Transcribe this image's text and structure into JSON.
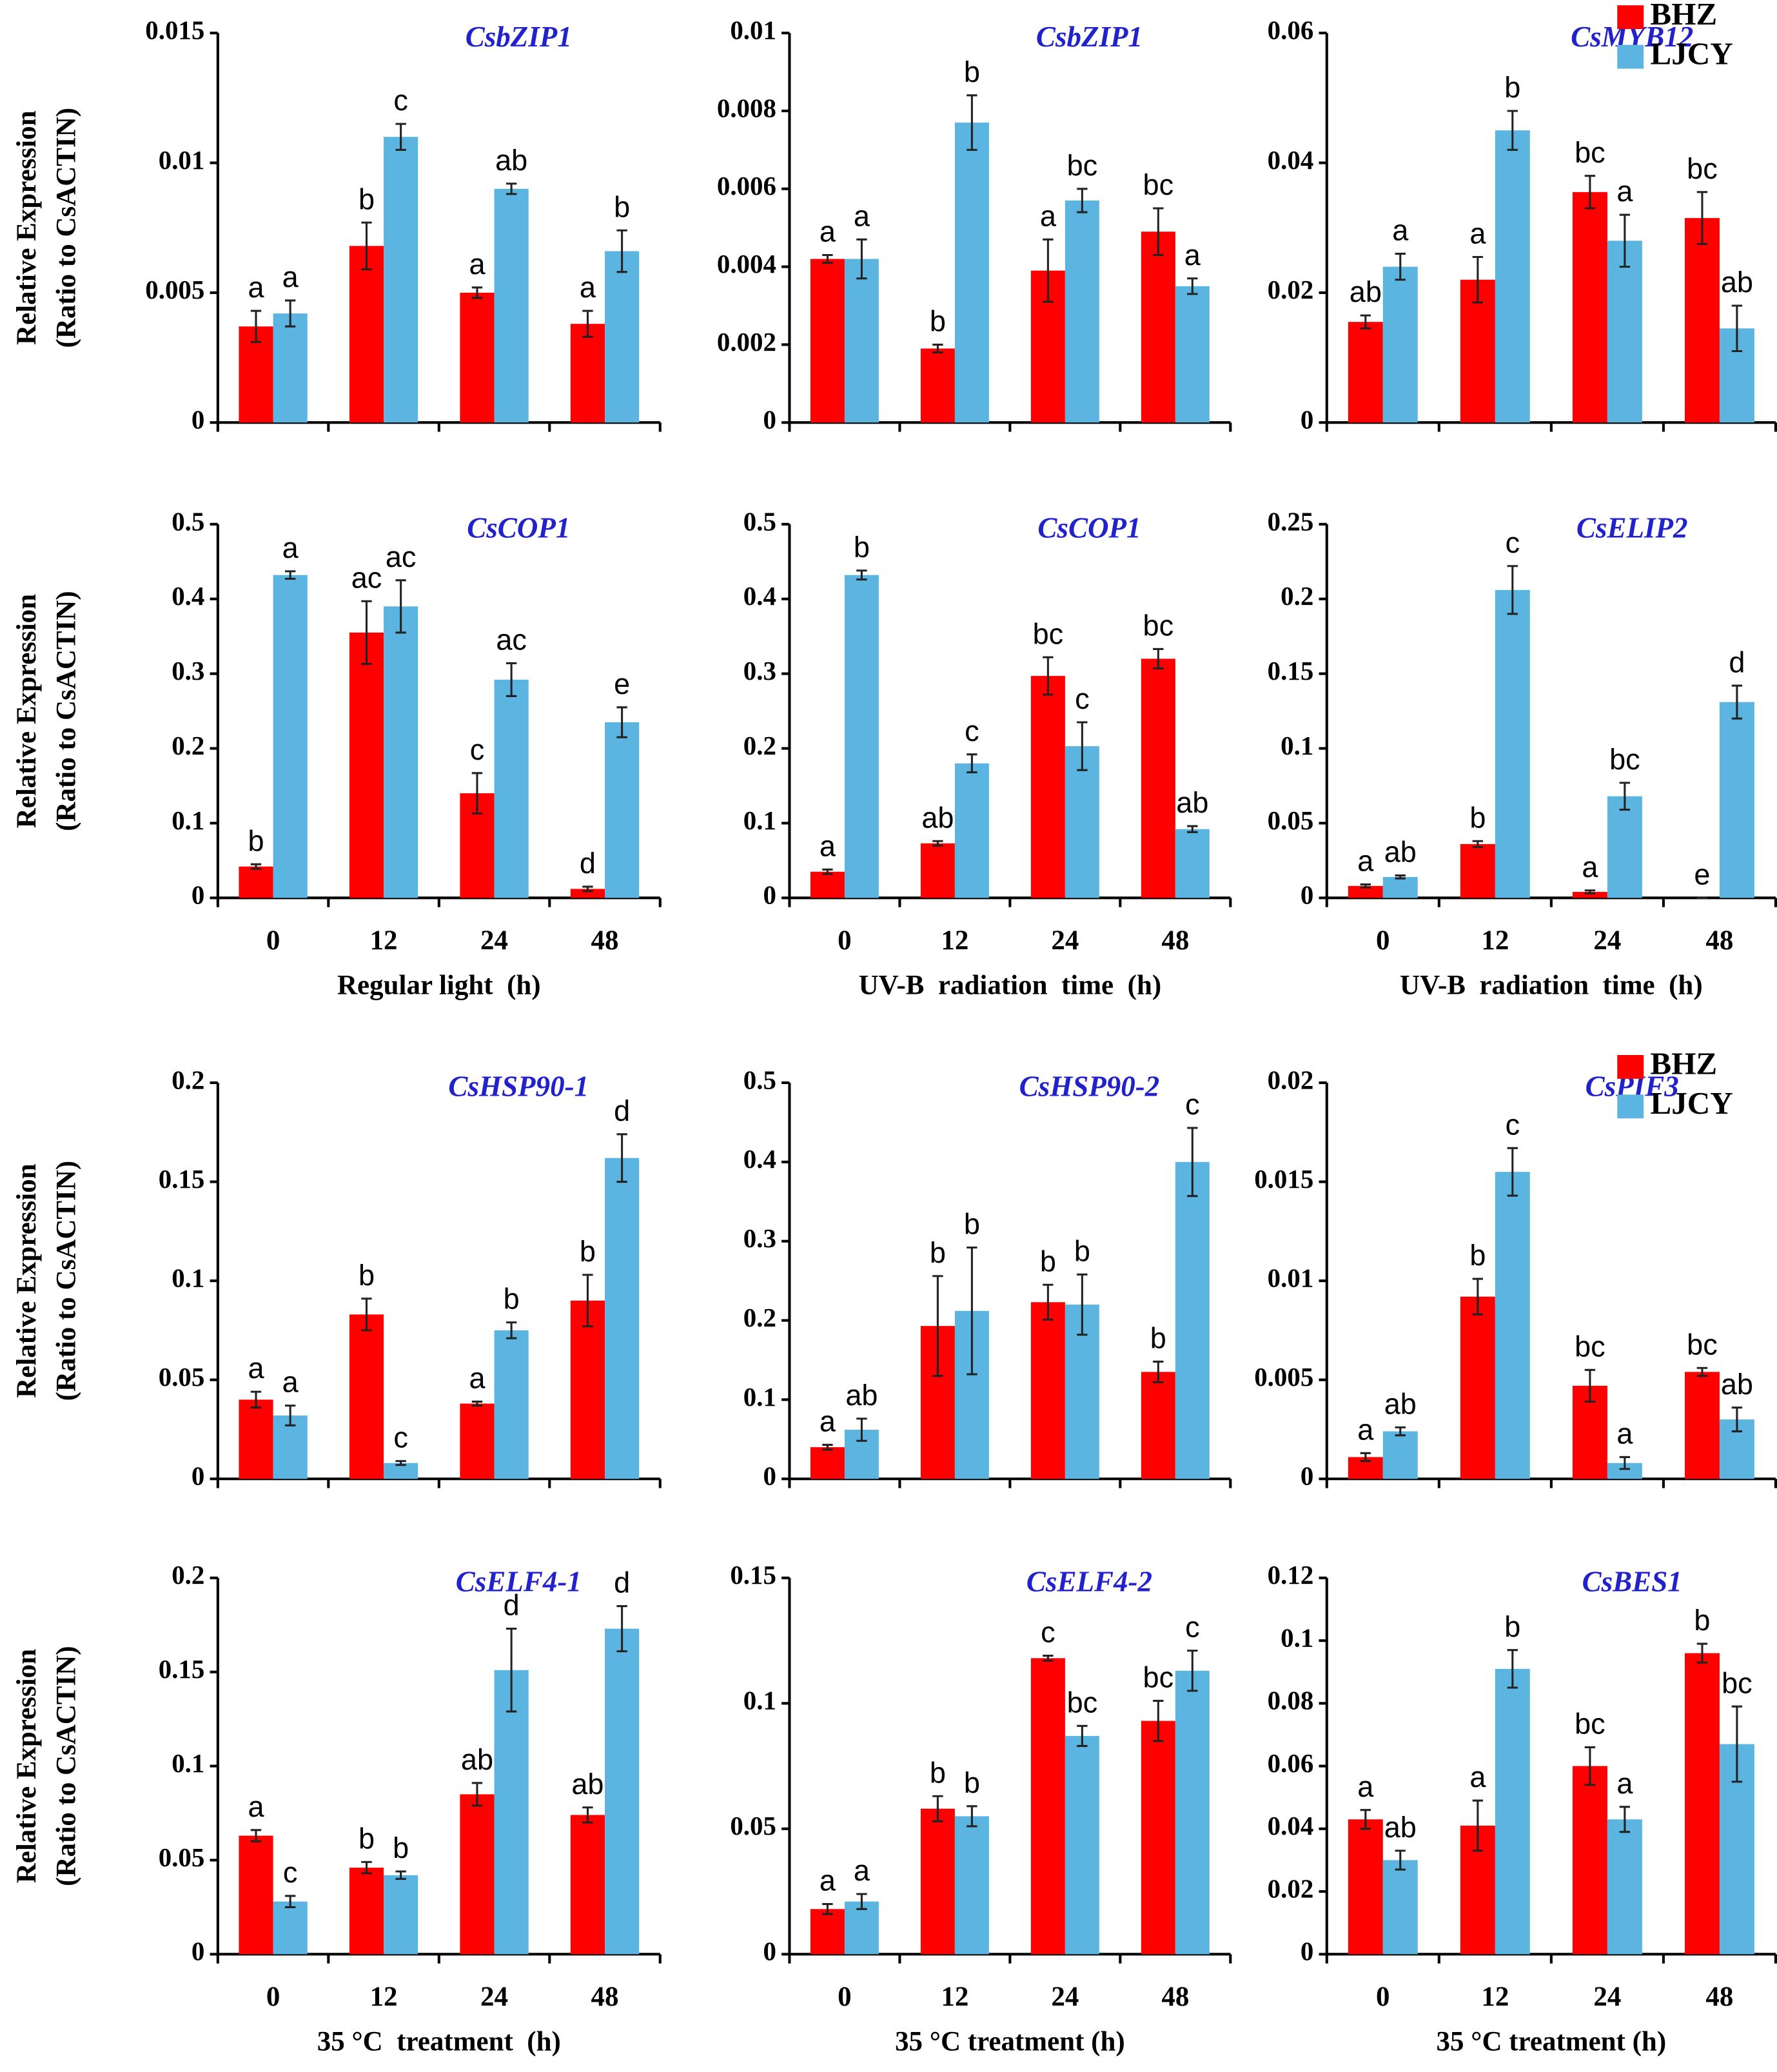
{
  "chart_data": [
    {
      "type": "bar",
      "title": "CsbZIP1",
      "ylabel": [
        "Relative Expression",
        "(Ratio to CsACTIN)"
      ],
      "categories": [
        null,
        null,
        null,
        null
      ],
      "ylim": [
        0,
        0.015
      ],
      "yticks": [
        0,
        0.005,
        0.01,
        0.015
      ],
      "series": [
        {
          "name": "BHZ",
          "color": "#ff0000",
          "values": [
            0.0037,
            0.0068,
            0.005,
            0.0038
          ],
          "errors": [
            0.0006,
            0.0009,
            0.0002,
            0.0005
          ],
          "letters": [
            "a",
            "b",
            "a",
            "a"
          ]
        },
        {
          "name": "LJCY",
          "color": "#5bb5e0",
          "values": [
            0.0042,
            0.011,
            0.009,
            0.0066
          ],
          "errors": [
            0.0005,
            0.0005,
            0.0002,
            0.0008
          ],
          "letters": [
            "a",
            "c",
            "ab",
            "b"
          ]
        }
      ]
    },
    {
      "type": "bar",
      "title": "CsbZIP1",
      "categories": [
        null,
        null,
        null,
        null
      ],
      "ylim": [
        0,
        0.01
      ],
      "yticks": [
        0,
        0.002,
        0.004,
        0.006,
        0.008,
        0.01
      ],
      "series": [
        {
          "name": "BHZ",
          "color": "#ff0000",
          "values": [
            0.0042,
            0.0019,
            0.0039,
            0.0049
          ],
          "errors": [
            0.0001,
            0.0001,
            0.0008,
            0.0006
          ],
          "letters": [
            "a",
            "b",
            "a",
            "bc"
          ]
        },
        {
          "name": "LJCY",
          "color": "#5bb5e0",
          "values": [
            0.0042,
            0.0077,
            0.0057,
            0.0035
          ],
          "errors": [
            0.0005,
            0.0007,
            0.0003,
            0.0002
          ],
          "letters": [
            "a",
            "b",
            "bc",
            "a"
          ]
        }
      ]
    },
    {
      "type": "bar",
      "title": "CsMYB12",
      "legend": "upper right",
      "categories": [
        null,
        null,
        null,
        null
      ],
      "ylim": [
        0,
        0.06
      ],
      "yticks": [
        0,
        0.02,
        0.04,
        0.06
      ],
      "series": [
        {
          "name": "BHZ",
          "color": "#ff0000",
          "values": [
            0.0155,
            0.022,
            0.0355,
            0.0315
          ],
          "errors": [
            0.001,
            0.0035,
            0.0025,
            0.004
          ],
          "letters": [
            "ab",
            "a",
            "bc",
            "bc"
          ]
        },
        {
          "name": "LJCY",
          "color": "#5bb5e0",
          "values": [
            0.024,
            0.045,
            0.028,
            0.0145
          ],
          "errors": [
            0.002,
            0.003,
            0.004,
            0.0035
          ],
          "letters": [
            "a",
            "b",
            "a",
            "ab"
          ]
        }
      ]
    },
    {
      "type": "bar",
      "title": "CsCOP1",
      "ylabel": [
        "Relative Expression",
        "(Ratio to CsACTIN)"
      ],
      "xlabel": "Regular light  (h)",
      "categories": [
        "0",
        "12",
        "24",
        "48"
      ],
      "ylim": [
        0,
        0.5
      ],
      "yticks": [
        0,
        0.1,
        0.2,
        0.3,
        0.4,
        0.5
      ],
      "series": [
        {
          "name": "BHZ",
          "color": "#ff0000",
          "values": [
            0.042,
            0.355,
            0.14,
            0.012
          ],
          "errors": [
            0.003,
            0.042,
            0.027,
            0.003
          ],
          "letters": [
            "b",
            "ac",
            "c",
            "d"
          ]
        },
        {
          "name": "LJCY",
          "color": "#5bb5e0",
          "values": [
            0.432,
            0.39,
            0.292,
            0.235
          ],
          "errors": [
            0.005,
            0.035,
            0.022,
            0.02
          ],
          "letters": [
            "a",
            "ac",
            "ac",
            "e"
          ]
        }
      ]
    },
    {
      "type": "bar",
      "title": "CsCOP1",
      "xlabel": "UV-B  radiation  time  (h)",
      "categories": [
        "0",
        "12",
        "24",
        "48"
      ],
      "ylim": [
        0,
        0.5
      ],
      "yticks": [
        0,
        0.1,
        0.2,
        0.3,
        0.4,
        0.5
      ],
      "series": [
        {
          "name": "BHZ",
          "color": "#ff0000",
          "values": [
            0.035,
            0.073,
            0.297,
            0.32
          ],
          "errors": [
            0.003,
            0.003,
            0.025,
            0.013
          ],
          "letters": [
            "a",
            "ab",
            "bc",
            "bc"
          ]
        },
        {
          "name": "LJCY",
          "color": "#5bb5e0",
          "values": [
            0.432,
            0.18,
            0.203,
            0.092
          ],
          "errors": [
            0.006,
            0.012,
            0.032,
            0.004
          ],
          "letters": [
            "b",
            "c",
            "c",
            "ab"
          ]
        }
      ]
    },
    {
      "type": "bar",
      "title": "CsELIP2",
      "xlabel": "UV-B  radiation  time  (h)",
      "categories": [
        "0",
        "12",
        "24",
        "48"
      ],
      "ylim": [
        0,
        0.25
      ],
      "yticks": [
        0,
        0.05,
        0.1,
        0.15,
        0.2,
        0.25
      ],
      "series": [
        {
          "name": "BHZ",
          "color": "#ff0000",
          "values": [
            0.008,
            0.036,
            0.004,
            0
          ],
          "errors": [
            0.001,
            0.002,
            0.001,
            0
          ],
          "letters": [
            "a",
            "b",
            "a",
            "e"
          ]
        },
        {
          "name": "LJCY",
          "color": "#5bb5e0",
          "values": [
            0.014,
            0.206,
            0.068,
            0.131
          ],
          "errors": [
            0.001,
            0.016,
            0.009,
            0.011
          ],
          "letters": [
            "ab",
            "c",
            "bc",
            "d"
          ]
        }
      ]
    },
    {
      "type": "bar",
      "title": "CsHSP90-1",
      "ylabel": [
        "Relative Expression",
        "(Ratio to CsACTIN)"
      ],
      "categories": [
        null,
        null,
        null,
        null
      ],
      "ylim": [
        0,
        0.2
      ],
      "yticks": [
        0,
        0.05,
        0.1,
        0.15,
        0.2
      ],
      "series": [
        {
          "name": "BHZ",
          "color": "#ff0000",
          "values": [
            0.04,
            0.083,
            0.038,
            0.09
          ],
          "errors": [
            0.004,
            0.008,
            0.001,
            0.013
          ],
          "letters": [
            "a",
            "b",
            "a",
            "b"
          ]
        },
        {
          "name": "LJCY",
          "color": "#5bb5e0",
          "values": [
            0.032,
            0.008,
            0.075,
            0.162
          ],
          "errors": [
            0.005,
            0.001,
            0.004,
            0.012
          ],
          "letters": [
            "a",
            "c",
            "b",
            "d"
          ]
        }
      ]
    },
    {
      "type": "bar",
      "title": "CsHSP90-2",
      "categories": [
        null,
        null,
        null,
        null
      ],
      "ylim": [
        0,
        0.5
      ],
      "yticks": [
        0,
        0.1,
        0.2,
        0.3,
        0.4,
        0.5
      ],
      "series": [
        {
          "name": "BHZ",
          "color": "#ff0000",
          "values": [
            0.04,
            0.193,
            0.223,
            0.135
          ],
          "errors": [
            0.003,
            0.063,
            0.022,
            0.013
          ],
          "letters": [
            "a",
            "b",
            "b",
            "b"
          ]
        },
        {
          "name": "LJCY",
          "color": "#5bb5e0",
          "values": [
            0.062,
            0.212,
            0.22,
            0.4
          ],
          "errors": [
            0.014,
            0.08,
            0.038,
            0.043
          ],
          "letters": [
            "ab",
            "b",
            "b",
            "c"
          ]
        }
      ]
    },
    {
      "type": "bar",
      "title": "CsPIF3",
      "legend": "upper right",
      "categories": [
        null,
        null,
        null,
        null
      ],
      "ylim": [
        0,
        0.02
      ],
      "yticks": [
        0,
        0.005,
        0.01,
        0.015,
        0.02
      ],
      "series": [
        {
          "name": "BHZ",
          "color": "#ff0000",
          "values": [
            0.0011,
            0.0092,
            0.0047,
            0.0054
          ],
          "errors": [
            0.0002,
            0.0009,
            0.0008,
            0.0002
          ],
          "letters": [
            "a",
            "b",
            "bc",
            "bc"
          ]
        },
        {
          "name": "LJCY",
          "color": "#5bb5e0",
          "values": [
            0.0024,
            0.0155,
            0.0008,
            0.003
          ],
          "errors": [
            0.0002,
            0.0012,
            0.0003,
            0.0006
          ],
          "letters": [
            "ab",
            "c",
            "a",
            "ab"
          ]
        }
      ]
    },
    {
      "type": "bar",
      "title": "CsELF4-1",
      "ylabel": [
        "Relative Expression",
        "(Ratio to CsACTIN)"
      ],
      "xlabel": "35 °C  treatment  (h)",
      "categories": [
        "0",
        "12",
        "24",
        "48"
      ],
      "ylim": [
        0,
        0.2
      ],
      "yticks": [
        0,
        0.05,
        0.1,
        0.15,
        0.2
      ],
      "series": [
        {
          "name": "BHZ",
          "color": "#ff0000",
          "values": [
            0.063,
            0.046,
            0.085,
            0.074
          ],
          "errors": [
            0.003,
            0.003,
            0.006,
            0.004
          ],
          "letters": [
            "a",
            "b",
            "ab",
            "ab"
          ]
        },
        {
          "name": "LJCY",
          "color": "#5bb5e0",
          "values": [
            0.028,
            0.042,
            0.151,
            0.173
          ],
          "errors": [
            0.003,
            0.002,
            0.022,
            0.012
          ],
          "letters": [
            "c",
            "b",
            "d",
            "d"
          ]
        }
      ]
    },
    {
      "type": "bar",
      "title": "CsELF4-2",
      "xlabel": "35 °C treatment (h)",
      "categories": [
        "0",
        "12",
        "24",
        "48"
      ],
      "ylim": [
        0,
        0.15
      ],
      "yticks": [
        0,
        0.05,
        0.1,
        0.15
      ],
      "series": [
        {
          "name": "BHZ",
          "color": "#ff0000",
          "values": [
            0.018,
            0.058,
            0.118,
            0.093
          ],
          "errors": [
            0.002,
            0.005,
            0.001,
            0.008
          ],
          "letters": [
            "a",
            "b",
            "c",
            "bc"
          ]
        },
        {
          "name": "LJCY",
          "color": "#5bb5e0",
          "values": [
            0.021,
            0.055,
            0.087,
            0.113
          ],
          "errors": [
            0.003,
            0.004,
            0.004,
            0.008
          ],
          "letters": [
            "a",
            "b",
            "bc",
            "c"
          ]
        }
      ]
    },
    {
      "type": "bar",
      "title": "CsBES1",
      "xlabel": "35 °C treatment (h)",
      "categories": [
        "0",
        "12",
        "24",
        "48"
      ],
      "ylim": [
        0,
        0.12
      ],
      "yticks": [
        0,
        0.02,
        0.04,
        0.06,
        0.08,
        0.1,
        0.12
      ],
      "series": [
        {
          "name": "BHZ",
          "color": "#ff0000",
          "values": [
            0.043,
            0.041,
            0.06,
            0.096
          ],
          "errors": [
            0.003,
            0.008,
            0.006,
            0.003
          ],
          "letters": [
            "a",
            "a",
            "bc",
            "b"
          ]
        },
        {
          "name": "LJCY",
          "color": "#5bb5e0",
          "values": [
            0.03,
            0.091,
            0.043,
            0.067
          ],
          "errors": [
            0.003,
            0.006,
            0.004,
            0.012
          ],
          "letters": [
            "ab",
            "b",
            "a",
            "bc"
          ]
        }
      ]
    }
  ]
}
